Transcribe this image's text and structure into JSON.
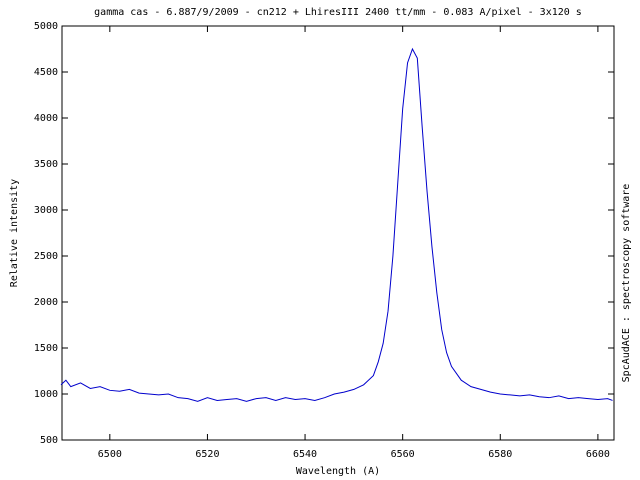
{
  "chart_data": {
    "type": "line",
    "title": "gamma cas - 6.887/9/2009 - cn212 + LhiresIII 2400 tt/mm - 0.083 A/pixel - 3x120 s",
    "x_label": "Wavelength (A)",
    "y_label": "Relative intensity",
    "side_label": "SpcAudACE : spectroscopy software",
    "x": [
      6490,
      6491,
      6492,
      6494,
      6496,
      6498,
      6500,
      6502,
      6504,
      6506,
      6508,
      6510,
      6512,
      6514,
      6516,
      6518,
      6520,
      6522,
      6524,
      6526,
      6528,
      6530,
      6532,
      6534,
      6536,
      6538,
      6540,
      6542,
      6544,
      6546,
      6548,
      6550,
      6552,
      6554,
      6555,
      6556,
      6557,
      6558,
      6559,
      6560,
      6561,
      6562,
      6563,
      6564,
      6565,
      6566,
      6567,
      6568,
      6569,
      6570,
      6572,
      6574,
      6576,
      6578,
      6580,
      6582,
      6584,
      6586,
      6588,
      6590,
      6592,
      6594,
      6596,
      6598,
      6600,
      6602,
      6603
    ],
    "series": [
      {
        "color": "#0000cc",
        "values": [
          1100,
          1150,
          1080,
          1120,
          1060,
          1080,
          1040,
          1030,
          1050,
          1010,
          1000,
          990,
          1000,
          960,
          950,
          920,
          960,
          930,
          940,
          950,
          920,
          950,
          960,
          930,
          960,
          940,
          950,
          930,
          960,
          1000,
          1020,
          1050,
          1100,
          1200,
          1350,
          1550,
          1900,
          2500,
          3300,
          4100,
          4600,
          4750,
          4650,
          3900,
          3200,
          2600,
          2100,
          1700,
          1450,
          1300,
          1150,
          1080,
          1050,
          1020,
          1000,
          990,
          980,
          990,
          970,
          960,
          980,
          950,
          960,
          950,
          940,
          950,
          930
        ]
      }
    ],
    "xlim": [
      6490.2,
      6603.3
    ],
    "ylim": [
      500,
      5000
    ],
    "xticks": [
      6500,
      6520,
      6540,
      6560,
      6580,
      6600
    ],
    "yticks": [
      500,
      1000,
      1500,
      2000,
      2500,
      3000,
      3500,
      4000,
      4500,
      5000
    ]
  }
}
